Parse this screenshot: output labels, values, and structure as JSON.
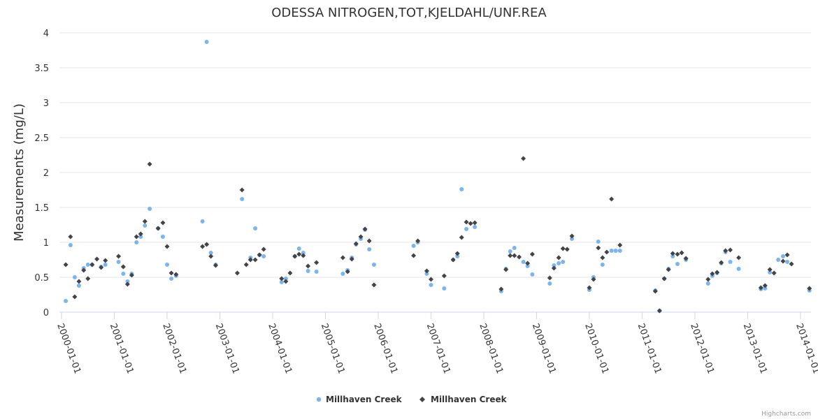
{
  "chart_data": {
    "type": "scatter",
    "title": "ODESSA NITROGEN,TOT,KJELDAHL/UNF.REA",
    "xlabel": "",
    "ylabel": "Measurements (mg/L)",
    "ylim": [
      0,
      4
    ],
    "xlim": [
      1999.96,
      2014.2
    ],
    "y_ticks": [
      "0",
      "0.5",
      "1",
      "1.5",
      "2",
      "2.5",
      "3",
      "3.5",
      "4"
    ],
    "x_ticks": [
      {
        "value": 2000,
        "label": "2000-01-01"
      },
      {
        "value": 2001,
        "label": "2001-01-01"
      },
      {
        "value": 2002,
        "label": "2002-01-01"
      },
      {
        "value": 2003,
        "label": "2003-01-01"
      },
      {
        "value": 2004,
        "label": "2004-01-01"
      },
      {
        "value": 2005,
        "label": "2005-01-01"
      },
      {
        "value": 2006,
        "label": "2006-01-01"
      },
      {
        "value": 2007,
        "label": "2007-01-01"
      },
      {
        "value": 2008,
        "label": "2008-01-01"
      },
      {
        "value": 2009,
        "label": "2009-01-01"
      },
      {
        "value": 2010,
        "label": "2010-01-01"
      },
      {
        "value": 2011,
        "label": "2011-01-01"
      },
      {
        "value": 2012,
        "label": "2012-01-01"
      },
      {
        "value": 2013,
        "label": "2013-01-01"
      },
      {
        "value": 2014,
        "label": "2014-01-01"
      }
    ],
    "grid": true,
    "legend_position": "bottom-center",
    "series": [
      {
        "name": "Millhaven Creek",
        "marker": "circle",
        "color": "#7cb5ec",
        "points": [
          [
            2000.08,
            0.16
          ],
          [
            2000.17,
            0.96
          ],
          [
            2000.25,
            0.5
          ],
          [
            2000.33,
            0.38
          ],
          [
            2000.42,
            0.63
          ],
          [
            2000.5,
            0.68
          ],
          [
            2000.58,
            0.68
          ],
          [
            2000.75,
            0.65
          ],
          [
            2000.83,
            0.68
          ],
          [
            2001.08,
            0.72
          ],
          [
            2001.17,
            0.55
          ],
          [
            2001.25,
            0.44
          ],
          [
            2001.33,
            0.55
          ],
          [
            2001.42,
            1.0
          ],
          [
            2001.5,
            1.08
          ],
          [
            2001.58,
            1.24
          ],
          [
            2001.67,
            1.48
          ],
          [
            2001.83,
            1.2
          ],
          [
            2001.92,
            1.08
          ],
          [
            2002.0,
            0.68
          ],
          [
            2002.08,
            0.48
          ],
          [
            2002.17,
            0.52
          ],
          [
            2002.67,
            1.3
          ],
          [
            2002.75,
            3.87
          ],
          [
            2002.83,
            0.85
          ],
          [
            2002.92,
            0.68
          ],
          [
            2003.42,
            1.62
          ],
          [
            2003.58,
            0.78
          ],
          [
            2003.67,
            1.2
          ],
          [
            2003.75,
            0.82
          ],
          [
            2003.83,
            0.8
          ],
          [
            2004.17,
            0.43
          ],
          [
            2004.25,
            0.48
          ],
          [
            2004.42,
            0.8
          ],
          [
            2004.5,
            0.91
          ],
          [
            2004.58,
            0.85
          ],
          [
            2004.67,
            0.59
          ],
          [
            2004.83,
            0.58
          ],
          [
            2005.33,
            0.55
          ],
          [
            2005.42,
            0.6
          ],
          [
            2005.5,
            0.78
          ],
          [
            2005.58,
            0.97
          ],
          [
            2005.67,
            1.05
          ],
          [
            2005.75,
            1.18
          ],
          [
            2005.83,
            0.9
          ],
          [
            2005.92,
            0.68
          ],
          [
            2006.67,
            0.95
          ],
          [
            2006.75,
            1.0
          ],
          [
            2006.92,
            0.55
          ],
          [
            2007.0,
            0.39
          ],
          [
            2007.25,
            0.34
          ],
          [
            2007.42,
            0.75
          ],
          [
            2007.5,
            0.8
          ],
          [
            2007.58,
            1.76
          ],
          [
            2007.67,
            1.19
          ],
          [
            2007.83,
            1.22
          ],
          [
            2008.33,
            0.3
          ],
          [
            2008.42,
            0.62
          ],
          [
            2008.5,
            0.87
          ],
          [
            2008.58,
            0.92
          ],
          [
            2008.75,
            0.72
          ],
          [
            2008.83,
            0.66
          ],
          [
            2008.92,
            0.54
          ],
          [
            2009.25,
            0.41
          ],
          [
            2009.33,
            0.67
          ],
          [
            2009.42,
            0.7
          ],
          [
            2009.5,
            0.72
          ],
          [
            2009.67,
            1.05
          ],
          [
            2010.0,
            0.32
          ],
          [
            2010.08,
            0.5
          ],
          [
            2010.17,
            1.01
          ],
          [
            2010.25,
            0.68
          ],
          [
            2010.42,
            0.88
          ],
          [
            2010.5,
            0.88
          ],
          [
            2010.58,
            0.88
          ],
          [
            2011.25,
            0.31
          ],
          [
            2011.33,
            0.02
          ],
          [
            2011.42,
            0.48
          ],
          [
            2011.5,
            0.62
          ],
          [
            2011.58,
            0.8
          ],
          [
            2011.67,
            0.69
          ],
          [
            2011.83,
            0.75
          ],
          [
            2012.25,
            0.41
          ],
          [
            2012.33,
            0.52
          ],
          [
            2012.42,
            0.56
          ],
          [
            2012.5,
            0.7
          ],
          [
            2012.58,
            0.86
          ],
          [
            2012.67,
            0.72
          ],
          [
            2012.83,
            0.62
          ],
          [
            2013.25,
            0.33
          ],
          [
            2013.33,
            0.34
          ],
          [
            2013.42,
            0.57
          ],
          [
            2013.58,
            0.75
          ],
          [
            2013.67,
            0.8
          ],
          [
            2013.75,
            0.72
          ],
          [
            2014.17,
            0.31
          ]
        ]
      },
      {
        "name": "Millhaven Creek",
        "marker": "diamond",
        "color": "#434348",
        "points": [
          [
            2000.08,
            0.68
          ],
          [
            2000.17,
            1.08
          ],
          [
            2000.25,
            0.22
          ],
          [
            2000.33,
            0.44
          ],
          [
            2000.42,
            0.6
          ],
          [
            2000.5,
            0.48
          ],
          [
            2000.58,
            0.68
          ],
          [
            2000.67,
            0.76
          ],
          [
            2000.75,
            0.64
          ],
          [
            2000.83,
            0.74
          ],
          [
            2001.08,
            0.8
          ],
          [
            2001.17,
            0.65
          ],
          [
            2001.25,
            0.4
          ],
          [
            2001.33,
            0.53
          ],
          [
            2001.42,
            1.08
          ],
          [
            2001.5,
            1.12
          ],
          [
            2001.58,
            1.3
          ],
          [
            2001.67,
            2.12
          ],
          [
            2001.83,
            1.2
          ],
          [
            2001.92,
            1.28
          ],
          [
            2002.0,
            0.94
          ],
          [
            2002.08,
            0.56
          ],
          [
            2002.17,
            0.54
          ],
          [
            2002.67,
            0.94
          ],
          [
            2002.75,
            0.97
          ],
          [
            2002.83,
            0.8
          ],
          [
            2002.92,
            0.67
          ],
          [
            2003.33,
            0.56
          ],
          [
            2003.42,
            1.75
          ],
          [
            2003.5,
            0.68
          ],
          [
            2003.58,
            0.75
          ],
          [
            2003.67,
            0.75
          ],
          [
            2003.75,
            0.82
          ],
          [
            2003.83,
            0.9
          ],
          [
            2004.17,
            0.48
          ],
          [
            2004.25,
            0.44
          ],
          [
            2004.33,
            0.56
          ],
          [
            2004.42,
            0.8
          ],
          [
            2004.5,
            0.83
          ],
          [
            2004.58,
            0.81
          ],
          [
            2004.67,
            0.66
          ],
          [
            2004.83,
            0.71
          ],
          [
            2005.33,
            0.78
          ],
          [
            2005.42,
            0.58
          ],
          [
            2005.5,
            0.76
          ],
          [
            2005.58,
            0.98
          ],
          [
            2005.67,
            1.08
          ],
          [
            2005.75,
            1.19
          ],
          [
            2005.83,
            1.02
          ],
          [
            2005.92,
            0.39
          ],
          [
            2006.67,
            0.81
          ],
          [
            2006.75,
            1.02
          ],
          [
            2006.92,
            0.59
          ],
          [
            2007.0,
            0.47
          ],
          [
            2007.25,
            0.52
          ],
          [
            2007.42,
            0.75
          ],
          [
            2007.5,
            0.84
          ],
          [
            2007.58,
            1.07
          ],
          [
            2007.67,
            1.29
          ],
          [
            2007.75,
            1.27
          ],
          [
            2007.83,
            1.28
          ],
          [
            2008.33,
            0.33
          ],
          [
            2008.42,
            0.61
          ],
          [
            2008.5,
            0.81
          ],
          [
            2008.58,
            0.81
          ],
          [
            2008.67,
            0.79
          ],
          [
            2008.75,
            2.2
          ],
          [
            2008.83,
            0.7
          ],
          [
            2008.92,
            0.83
          ],
          [
            2009.25,
            0.49
          ],
          [
            2009.33,
            0.63
          ],
          [
            2009.42,
            0.78
          ],
          [
            2009.5,
            0.91
          ],
          [
            2009.58,
            0.9
          ],
          [
            2009.67,
            1.09
          ],
          [
            2010.0,
            0.35
          ],
          [
            2010.08,
            0.47
          ],
          [
            2010.17,
            0.92
          ],
          [
            2010.25,
            0.78
          ],
          [
            2010.33,
            0.86
          ],
          [
            2010.42,
            1.62
          ],
          [
            2010.58,
            0.96
          ],
          [
            2011.25,
            0.3
          ],
          [
            2011.33,
            0.02
          ],
          [
            2011.42,
            0.48
          ],
          [
            2011.5,
            0.61
          ],
          [
            2011.58,
            0.84
          ],
          [
            2011.67,
            0.83
          ],
          [
            2011.75,
            0.85
          ],
          [
            2011.83,
            0.77
          ],
          [
            2012.25,
            0.47
          ],
          [
            2012.33,
            0.55
          ],
          [
            2012.42,
            0.57
          ],
          [
            2012.5,
            0.71
          ],
          [
            2012.58,
            0.88
          ],
          [
            2012.67,
            0.89
          ],
          [
            2012.83,
            0.78
          ],
          [
            2013.25,
            0.35
          ],
          [
            2013.33,
            0.38
          ],
          [
            2013.42,
            0.61
          ],
          [
            2013.5,
            0.56
          ],
          [
            2013.67,
            0.73
          ],
          [
            2013.75,
            0.82
          ],
          [
            2013.83,
            0.69
          ],
          [
            2014.17,
            0.34
          ]
        ]
      }
    ]
  },
  "credits": "Highcharts.com"
}
